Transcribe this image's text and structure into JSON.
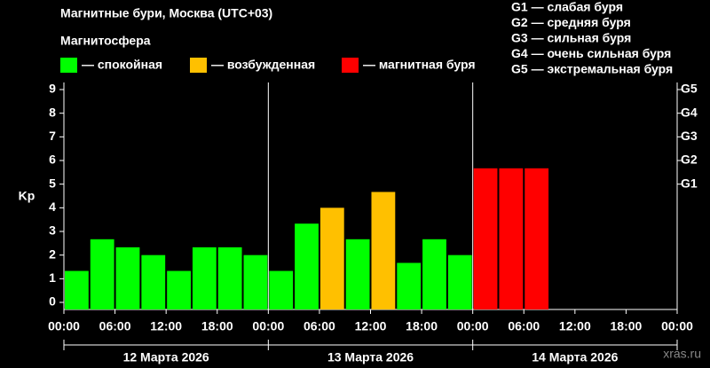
{
  "chart_data": {
    "type": "bar",
    "title": "Магнитные бури, Москва (UTC+03)",
    "subtitle": "Магнитосфера",
    "y_label": "Kp",
    "watermark": "xras.ru",
    "legend": [
      {
        "label": "— спокойная",
        "color": "#00ff00"
      },
      {
        "label": "— возбужденная",
        "color": "#ffc000"
      },
      {
        "label": "— магнитная буря",
        "color": "#ff0000"
      }
    ],
    "storm_scale": [
      "G1 — слабая буря",
      "G2 — средняя буря",
      "G3 — сильная буря",
      "G4 — очень сильная буря",
      "G5 — экстремальная буря"
    ],
    "x": [
      0,
      3,
      6,
      9,
      12,
      15,
      18,
      21,
      24,
      27,
      30,
      33,
      36,
      39,
      42,
      45,
      48,
      51,
      54,
      57,
      60,
      63,
      66,
      69
    ],
    "values": [
      1.33,
      2.67,
      2.33,
      2.0,
      1.33,
      2.33,
      2.33,
      2.0,
      1.33,
      3.33,
      4.0,
      2.67,
      4.67,
      1.67,
      2.67,
      2.0,
      5.67,
      5.67,
      5.67,
      null,
      null,
      null,
      null,
      null
    ],
    "colors": [
      "#00ff00",
      "#00ff00",
      "#00ff00",
      "#00ff00",
      "#00ff00",
      "#00ff00",
      "#00ff00",
      "#00ff00",
      "#00ff00",
      "#00ff00",
      "#ffc000",
      "#00ff00",
      "#ffc000",
      "#00ff00",
      "#00ff00",
      "#00ff00",
      "#ff0000",
      "#ff0000",
      "#ff0000",
      null,
      null,
      null,
      null,
      null
    ],
    "xlim": [
      0,
      72
    ],
    "xticks": [
      {
        "value": 0,
        "label": "00:00"
      },
      {
        "value": 6,
        "label": "06:00"
      },
      {
        "value": 12,
        "label": "12:00"
      },
      {
        "value": 18,
        "label": "18:00"
      },
      {
        "value": 24,
        "label": "00:00"
      },
      {
        "value": 30,
        "label": "06:00"
      },
      {
        "value": 36,
        "label": "12:00"
      },
      {
        "value": 42,
        "label": "18:00"
      },
      {
        "value": 48,
        "label": "00:00"
      },
      {
        "value": 54,
        "label": "06:00"
      },
      {
        "value": 60,
        "label": "12:00"
      },
      {
        "value": 66,
        "label": "18:00"
      },
      {
        "value": 72,
        "label": "00:00"
      }
    ],
    "days": [
      {
        "start": 0,
        "label": "12 Марта 2026"
      },
      {
        "start": 24,
        "label": "13 Марта 2026"
      },
      {
        "start": 48,
        "label": "14 Марта 2026"
      }
    ],
    "ylim": [
      -0.3,
      9.3
    ],
    "yticks": [
      0,
      1,
      2,
      3,
      4,
      5,
      6,
      7,
      8,
      9
    ],
    "y2ticks": [
      {
        "value": 5,
        "label": "G1"
      },
      {
        "value": 6,
        "label": "G2"
      },
      {
        "value": 7,
        "label": "G3"
      },
      {
        "value": 8,
        "label": "G4"
      },
      {
        "value": 9,
        "label": "G5"
      }
    ]
  }
}
